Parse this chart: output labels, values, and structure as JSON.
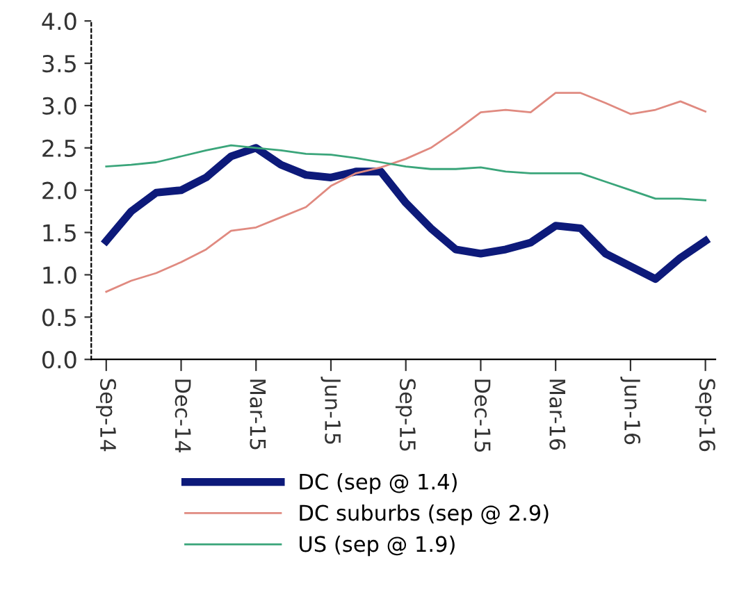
{
  "chart_data": {
    "type": "line",
    "categories": [
      "Sep-14",
      null,
      null,
      "Dec-14",
      null,
      null,
      "Mar-15",
      null,
      null,
      "Jun-15",
      null,
      null,
      "Sep-15",
      null,
      null,
      "Dec-15",
      null,
      null,
      "Mar-16",
      null,
      null,
      "Jun-16",
      null,
      null,
      "Sep-16"
    ],
    "series": [
      {
        "name": "DC (sep @ 1.4)",
        "color": "#0d1a7a",
        "values": [
          1.4,
          1.75,
          1.97,
          2.0,
          2.15,
          2.4,
          2.5,
          2.3,
          2.18,
          2.15,
          2.22,
          2.22,
          1.85,
          1.55,
          1.3,
          1.25,
          1.3,
          1.38,
          1.58,
          1.55,
          1.25,
          1.1,
          0.95,
          1.2,
          1.4
        ]
      },
      {
        "name": "DC suburbs (sep @ 2.9)",
        "color": "#e08a80",
        "values": [
          0.8,
          0.93,
          1.02,
          1.15,
          1.3,
          1.52,
          1.56,
          1.68,
          1.8,
          2.05,
          2.2,
          2.27,
          2.37,
          2.5,
          2.7,
          2.92,
          2.95,
          2.92,
          3.15,
          3.15,
          3.03,
          2.9,
          2.95,
          3.05,
          2.93
        ]
      },
      {
        "name": "US (sep @ 1.9)",
        "color": "#3aa57a",
        "values": [
          2.28,
          2.3,
          2.33,
          2.4,
          2.47,
          2.53,
          2.5,
          2.47,
          2.43,
          2.42,
          2.38,
          2.33,
          2.28,
          2.25,
          2.25,
          2.27,
          2.22,
          2.2,
          2.2,
          2.2,
          2.1,
          2.0,
          1.9,
          1.9,
          1.88
        ]
      }
    ],
    "ylim": [
      0,
      4
    ],
    "yticks": [
      {
        "value": 0,
        "label": "0.0"
      },
      0.5,
      {
        "value": 1,
        "label": "1.0"
      },
      1.5,
      {
        "value": 2,
        "label": "2.0"
      },
      2.5,
      {
        "value": 3,
        "label": "3.0"
      },
      3.5,
      {
        "value": 4,
        "label": "4.0"
      }
    ],
    "grid": false,
    "legend": "bottom",
    "marker": "none",
    "line_style": "solid"
  }
}
